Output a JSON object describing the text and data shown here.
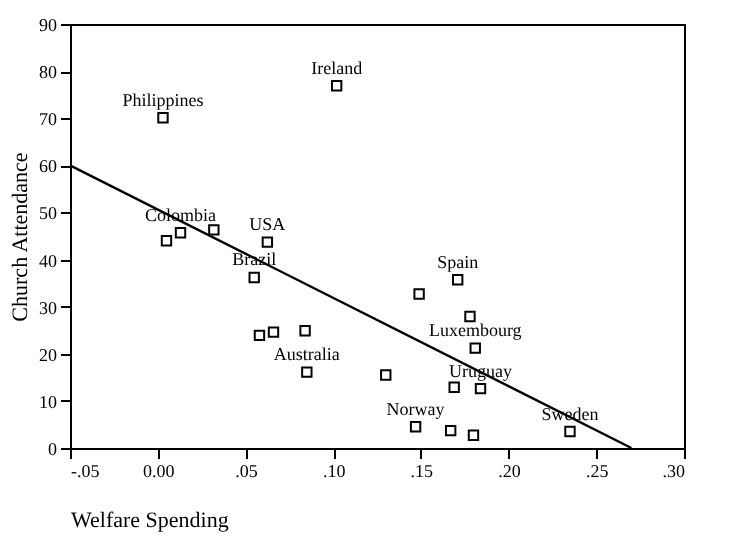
{
  "chart_data": {
    "type": "scatter",
    "xlabel": "Welfare Spending",
    "ylabel": "Church Attendance",
    "xlim": [
      -0.05,
      0.3
    ],
    "ylim": [
      0,
      90
    ],
    "xticks": [
      {
        "value": -0.05,
        "label": "-.05"
      },
      {
        "value": 0,
        "label": "0.00"
      },
      {
        "value": 0.05,
        "label": ".05"
      },
      {
        "value": 0.1,
        "label": ".10"
      },
      {
        "value": 0.15,
        "label": ".15"
      },
      {
        "value": 0.2,
        "label": ".20"
      },
      {
        "value": 0.25,
        "label": ".25"
      },
      {
        "value": 0.3,
        "label": ".30"
      }
    ],
    "yticks": [
      0,
      10,
      20,
      30,
      40,
      50,
      60,
      70,
      80,
      90
    ],
    "grid": false,
    "series": [
      {
        "marker": "square",
        "color": "#000000",
        "x": [
          0.003,
          0.102,
          0.005,
          0.013,
          0.032,
          0.0625,
          0.055,
          0.058,
          0.066,
          0.084,
          0.085,
          0.171,
          0.149,
          0.178,
          0.181,
          0.13,
          0.169,
          0.184,
          0.147,
          0.167,
          0.18,
          0.235
        ],
        "values": [
          70.1,
          76.9,
          44.0,
          45.7,
          46.3,
          43.7,
          36.2,
          23.9,
          24.6,
          24.9,
          16.1,
          35.7,
          32.7,
          27.9,
          21.2,
          15.5,
          12.9,
          12.6,
          4.5,
          3.7,
          2.7,
          3.5
        ]
      },
      {
        "type": "line",
        "color": "#000000",
        "line_style": "solid",
        "x": [
          -0.05,
          0.27
        ],
        "values": [
          60,
          0
        ]
      }
    ],
    "annotations": [
      {
        "text": "Philippines",
        "x": 0.003,
        "y": 70.1
      },
      {
        "text": "Ireland",
        "x": 0.102,
        "y": 76.9
      },
      {
        "text": "Colombia",
        "x": 0.013,
        "y": 45.7
      },
      {
        "text": "USA",
        "x": 0.0625,
        "y": 43.7
      },
      {
        "text": "Brazil",
        "x": 0.055,
        "y": 36.2
      },
      {
        "text": "Australia",
        "x": 0.085,
        "y": 16.1
      },
      {
        "text": "Spain",
        "x": 0.171,
        "y": 35.7
      },
      {
        "text": "Luxembourg",
        "x": 0.181,
        "y": 21.2
      },
      {
        "text": "Uruguay",
        "x": 0.184,
        "y": 12.6
      },
      {
        "text": "Norway",
        "x": 0.147,
        "y": 4.5
      },
      {
        "text": "Sweden",
        "x": 0.235,
        "y": 3.5
      }
    ]
  }
}
